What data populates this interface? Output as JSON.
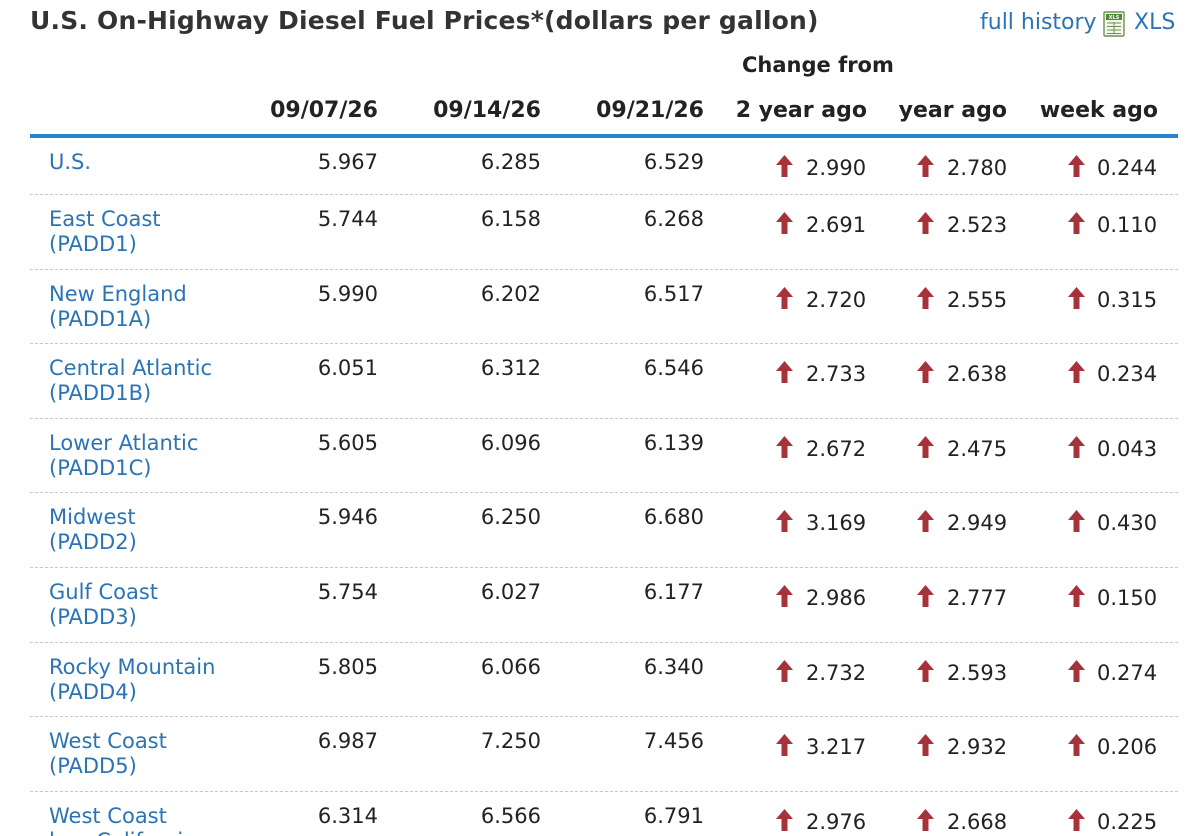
{
  "title": "U.S. On-Highway Diesel Fuel Prices*(dollars per gallon)",
  "links": {
    "full_history": "full history",
    "xls": "XLS"
  },
  "icons": {
    "xls": "spreadsheet-icon",
    "change_up": "arrow-up-icon"
  },
  "colors": {
    "link": "#2a74b5",
    "header_rule": "#2a84c9",
    "arrow_up": "#a8323a"
  },
  "table": {
    "change_from_label": "Change from",
    "columns": [
      "09/07/26",
      "09/14/26",
      "09/21/26",
      "2 year ago",
      "year ago",
      "week ago"
    ],
    "rows": [
      {
        "region": [
          "U.S."
        ],
        "values": [
          "5.967",
          "6.285",
          "6.529"
        ],
        "changes": [
          "2.990",
          "2.780",
          "0.244"
        ]
      },
      {
        "region": [
          "East Coast",
          "(PADD1)"
        ],
        "values": [
          "5.744",
          "6.158",
          "6.268"
        ],
        "changes": [
          "2.691",
          "2.523",
          "0.110"
        ]
      },
      {
        "region": [
          "New England",
          "(PADD1A)"
        ],
        "values": [
          "5.990",
          "6.202",
          "6.517"
        ],
        "changes": [
          "2.720",
          "2.555",
          "0.315"
        ]
      },
      {
        "region": [
          "Central Atlantic",
          "(PADD1B)"
        ],
        "values": [
          "6.051",
          "6.312",
          "6.546"
        ],
        "changes": [
          "2.733",
          "2.638",
          "0.234"
        ]
      },
      {
        "region": [
          "Lower Atlantic",
          "(PADD1C)"
        ],
        "values": [
          "5.605",
          "6.096",
          "6.139"
        ],
        "changes": [
          "2.672",
          "2.475",
          "0.043"
        ]
      },
      {
        "region": [
          "Midwest",
          "(PADD2)"
        ],
        "values": [
          "5.946",
          "6.250",
          "6.680"
        ],
        "changes": [
          "3.169",
          "2.949",
          "0.430"
        ]
      },
      {
        "region": [
          "Gulf Coast",
          "(PADD3)"
        ],
        "values": [
          "5.754",
          "6.027",
          "6.177"
        ],
        "changes": [
          "2.986",
          "2.777",
          "0.150"
        ]
      },
      {
        "region": [
          "Rocky Mountain",
          "(PADD4)"
        ],
        "values": [
          "5.805",
          "6.066",
          "6.340"
        ],
        "changes": [
          "2.732",
          "2.593",
          "0.274"
        ]
      },
      {
        "region": [
          "West Coast",
          "(PADD5)"
        ],
        "values": [
          "6.987",
          "7.250",
          "7.456"
        ],
        "changes": [
          "3.217",
          "2.932",
          "0.206"
        ]
      },
      {
        "region": [
          "West Coast",
          "less California"
        ],
        "values": [
          "6.314",
          "6.566",
          "6.791"
        ],
        "changes": [
          "2.976",
          "2.668",
          "0.225"
        ]
      }
    ]
  }
}
